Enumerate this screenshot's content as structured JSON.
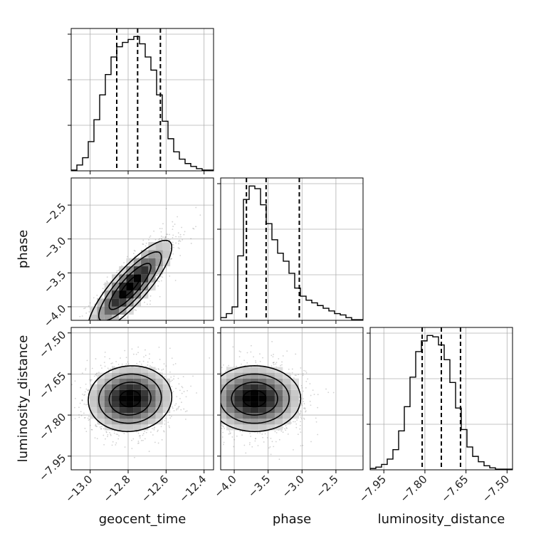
{
  "chart_data": {
    "type": "corner",
    "title": "",
    "parameters": [
      "geocent_time",
      "phase",
      "luminosity_distance"
    ],
    "axis_labels": [
      "geocent_time",
      "phase",
      "luminosity_distance"
    ],
    "grid": true,
    "colors": {
      "line": "#000000",
      "grid": "#b0b0b0",
      "scatter": "#7f7f7f"
    },
    "ranges": {
      "geocent_time": [
        -13.1,
        -12.35
      ],
      "phase": [
        -4.2,
        -2.1
      ],
      "luminosity_distance": [
        -8.0,
        -7.48
      ]
    },
    "ticks": {
      "geocent_time": [
        -13.0,
        -12.8,
        -12.6,
        -12.4
      ],
      "phase": [
        -4.0,
        -3.5,
        -3.0,
        -2.5
      ],
      "luminosity_distance": [
        -7.95,
        -7.8,
        -7.65,
        -7.5
      ]
    },
    "tick_labels": {
      "geocent_time": [
        "−13.0",
        "−12.8",
        "−12.6",
        "−12.4"
      ],
      "phase": [
        "−4.0",
        "−3.5",
        "−3.0",
        "−2.5"
      ],
      "luminosity_distance": [
        "−7.95",
        "−7.80",
        "−7.65",
        "−7.50"
      ]
    },
    "quantiles": {
      "geocent_time": [
        -12.86,
        -12.75,
        -12.63
      ],
      "phase": [
        -3.82,
        -3.53,
        -3.04
      ],
      "luminosity_distance": [
        -7.81,
        -7.74,
        -7.67
      ]
    },
    "histograms": {
      "geocent_time": {
        "edges": [
          -13.1,
          -13.07,
          -13.04,
          -13.01,
          -12.98,
          -12.95,
          -12.92,
          -12.89,
          -12.86,
          -12.83,
          -12.8,
          -12.77,
          -12.74,
          -12.71,
          -12.68,
          -12.65,
          -12.62,
          -12.59,
          -12.56,
          -12.53,
          -12.5,
          -12.47,
          -12.44,
          -12.41,
          -12.38,
          -12.35
        ],
        "counts": [
          0.5,
          4,
          9,
          20,
          35,
          52,
          66,
          78,
          85,
          88,
          90,
          92,
          87,
          78,
          69,
          52,
          34,
          22,
          13,
          8,
          5,
          3,
          1.5,
          0.5,
          0.5
        ]
      },
      "phase": {
        "edges": [
          -4.2,
          -4.116,
          -4.032,
          -3.948,
          -3.864,
          -3.78,
          -3.696,
          -3.612,
          -3.528,
          -3.444,
          -3.36,
          -3.276,
          -3.192,
          -3.108,
          -3.024,
          -2.94,
          -2.856,
          -2.772,
          -2.688,
          -2.604,
          -2.52,
          -2.436,
          -2.352,
          -2.268,
          -2.184,
          -2.1
        ],
        "counts": [
          2,
          5,
          10,
          48,
          90,
          100,
          98,
          86,
          72,
          60,
          50,
          44,
          35,
          24,
          18,
          15,
          13,
          11,
          9,
          7,
          5,
          4,
          2,
          0.5,
          0.5
        ]
      },
      "luminosity_distance": {
        "edges": [
          -8.0,
          -7.9792,
          -7.9584,
          -7.9376,
          -7.9168,
          -7.896,
          -7.8752,
          -7.8544,
          -7.8336,
          -7.8128,
          -7.792,
          -7.7712,
          -7.7504,
          -7.7296,
          -7.7088,
          -7.688,
          -7.6672,
          -7.6464,
          -7.6256,
          -7.6048,
          -7.584,
          -7.5632,
          -7.5424,
          -7.5216,
          -7.5008,
          -7.48
        ],
        "counts": [
          1,
          2,
          4,
          8,
          15,
          29,
          47,
          69,
          88,
          96,
          100,
          99,
          93,
          82,
          65,
          46,
          30,
          17,
          10,
          6,
          3,
          1.5,
          0.5,
          0.5,
          0.5
        ]
      }
    },
    "pairs": [
      {
        "x": "geocent_time",
        "y": "phase",
        "center": [
          -12.79,
          -3.7
        ],
        "sigma": [
          0.11,
          0.34
        ],
        "correlation": 0.85
      },
      {
        "x": "geocent_time",
        "y": "luminosity_distance",
        "center": [
          -12.79,
          -7.74
        ],
        "sigma": [
          0.11,
          0.06
        ],
        "correlation": 0.05
      },
      {
        "x": "phase",
        "y": "luminosity_distance",
        "center": [
          -3.7,
          -7.74
        ],
        "sigma": [
          0.34,
          0.06
        ],
        "correlation": 0.0
      }
    ]
  }
}
